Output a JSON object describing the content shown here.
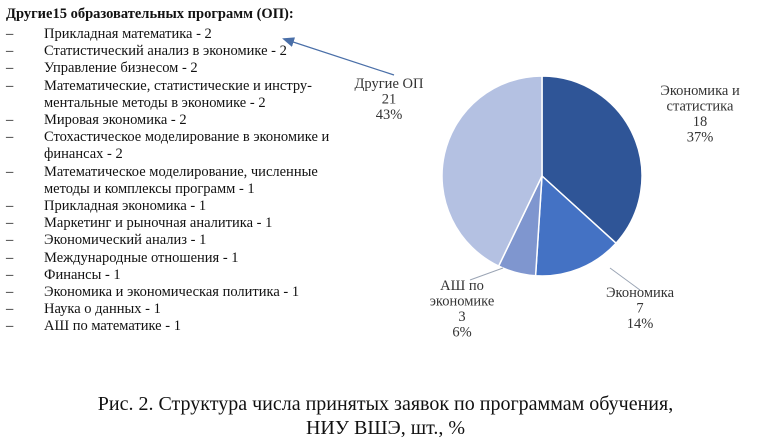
{
  "list": {
    "heading": "Другие15 образовательных программ (ОП):",
    "items": [
      "Прикладная математика - 2",
      "Статистический анализ в экономике - 2",
      "Управление бизнесом - 2",
      "Математические, статистические и инстру-ментальные методы в экономике - 2",
      "Мировая экономика - 2",
      "Стохастическое моделирование в экономике и финансах - 2",
      "Математическое моделирование, численные методы и комплексы программ - 1",
      "Прикладная экономика - 1",
      "Маркетинг и рыночная аналитика - 1",
      "Экономический анализ - 1",
      "Международные отношения - 1",
      "Финансы - 1",
      "Экономика и экономическая политика - 1",
      "Наука о данных - 1",
      "АШ по математике - 1"
    ]
  },
  "chart_data": {
    "type": "pie",
    "slices": [
      {
        "label": "Экономика и статистика",
        "value": 18,
        "percent": "37%",
        "color": "#2f5597"
      },
      {
        "label": "Экономика",
        "value": 7,
        "percent": "14%",
        "color": "#4472c4"
      },
      {
        "label": "АШ по экономике",
        "value": 3,
        "percent": "6%",
        "color": "#7f96cf"
      },
      {
        "label": "Другие ОП",
        "value": 21,
        "percent": "43%",
        "color": "#b4c1e2"
      }
    ]
  },
  "caption": {
    "line1": "Рис. 2. Структура числа принятых заявок по программам обучения,",
    "line2": "НИУ ВШЭ, шт., %"
  },
  "colors": {
    "leader_line": "#9aa4b4",
    "arrow": "#4a6fa8"
  }
}
